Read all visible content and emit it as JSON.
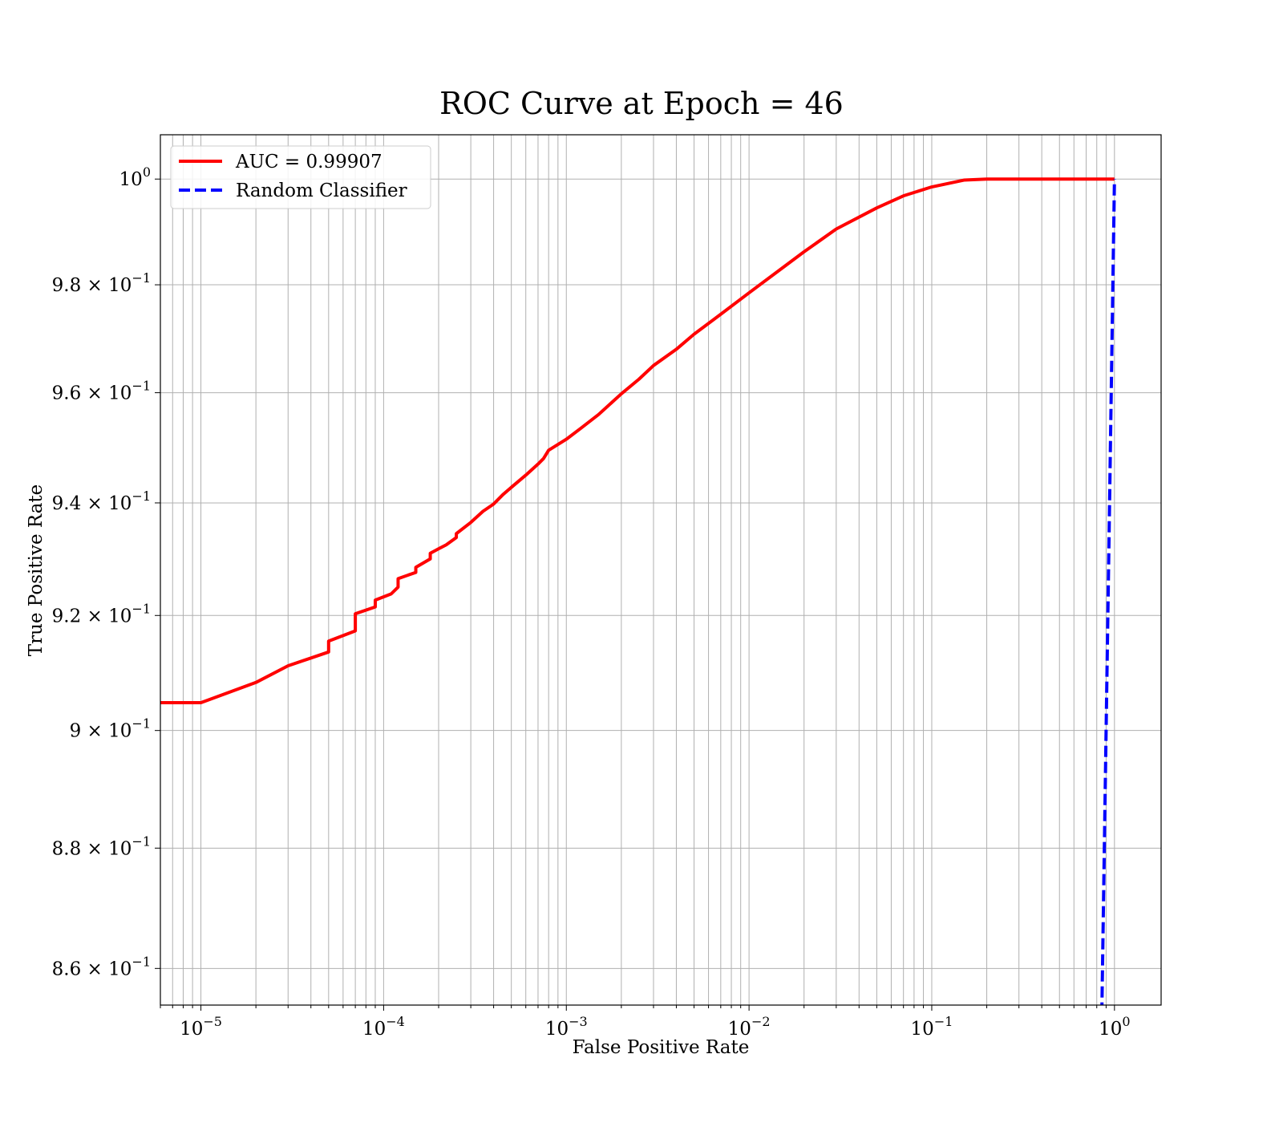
{
  "chart_data": {
    "type": "line",
    "title": "ROC Curve at Epoch = 46",
    "xlabel": "False Positive Rate",
    "ylabel": "True Positive Rate",
    "xscale": "log",
    "yscale": "log",
    "xlim": [
      6e-06,
      1.8
    ],
    "ylim": [
      0.854,
      1.0085
    ],
    "grid": "both-major-and-minor",
    "legend_position": "top-left",
    "x_ticks": [
      {
        "value": 1e-05,
        "base": "10",
        "exp": "−5"
      },
      {
        "value": 0.0001,
        "base": "10",
        "exp": "−4"
      },
      {
        "value": 0.001,
        "base": "10",
        "exp": "−3"
      },
      {
        "value": 0.01,
        "base": "10",
        "exp": "−2"
      },
      {
        "value": 0.1,
        "base": "10",
        "exp": "−1"
      },
      {
        "value": 1,
        "base": "10",
        "exp": "0"
      }
    ],
    "y_ticks": [
      {
        "value": 1.0,
        "mant": "",
        "base": "10",
        "exp": "0"
      },
      {
        "value": 0.98,
        "mant": "9.8",
        "base": "10",
        "exp": "−1"
      },
      {
        "value": 0.96,
        "mant": "9.6",
        "base": "10",
        "exp": "−1"
      },
      {
        "value": 0.94,
        "mant": "9.4",
        "base": "10",
        "exp": "−1"
      },
      {
        "value": 0.92,
        "mant": "9.2",
        "base": "10",
        "exp": "−1"
      },
      {
        "value": 0.9,
        "mant": "9",
        "base": "10",
        "exp": "−1"
      },
      {
        "value": 0.88,
        "mant": "8.8",
        "base": "10",
        "exp": "−1"
      },
      {
        "value": 0.86,
        "mant": "8.6",
        "base": "10",
        "exp": "−1"
      }
    ],
    "series": [
      {
        "name": "AUC = 0.99907",
        "color": "#ff0000",
        "style": "solid",
        "x": [
          6e-06,
          1e-05,
          2e-05,
          3e-05,
          5e-05,
          5e-05,
          7e-05,
          7e-05,
          9e-05,
          9e-05,
          0.00011,
          0.00012,
          0.00012,
          0.00015,
          0.00015,
          0.00018,
          0.00018,
          0.0002,
          0.00022,
          0.00025,
          0.00025,
          0.0003,
          0.00035,
          0.0004,
          0.00045,
          0.0005,
          0.0006,
          0.0007,
          0.00075,
          0.0008,
          0.001,
          0.0012,
          0.0015,
          0.002,
          0.0025,
          0.003,
          0.004,
          0.005,
          0.007,
          0.01,
          0.015,
          0.02,
          0.03,
          0.05,
          0.07,
          0.1,
          0.15,
          0.2,
          0.3,
          0.5,
          0.7,
          1.0
        ],
        "y": [
          0.9048,
          0.9048,
          0.9083,
          0.9112,
          0.9136,
          0.9155,
          0.9173,
          0.9203,
          0.9215,
          0.9227,
          0.9238,
          0.925,
          0.9265,
          0.9276,
          0.9285,
          0.93,
          0.931,
          0.9318,
          0.9325,
          0.9338,
          0.9345,
          0.9365,
          0.9385,
          0.9398,
          0.9415,
          0.9428,
          0.945,
          0.947,
          0.948,
          0.9495,
          0.9515,
          0.9535,
          0.956,
          0.9598,
          0.9625,
          0.965,
          0.968,
          0.9708,
          0.9745,
          0.9785,
          0.983,
          0.9862,
          0.9905,
          0.9945,
          0.9968,
          0.9985,
          0.9998,
          1.0,
          1.0,
          1.0,
          1.0,
          1.0
        ]
      },
      {
        "name": "Random Classifier",
        "color": "#0000ff",
        "style": "dashed",
        "x": [
          0.85,
          1.0
        ],
        "y": [
          0.85,
          1.0
        ]
      }
    ]
  }
}
